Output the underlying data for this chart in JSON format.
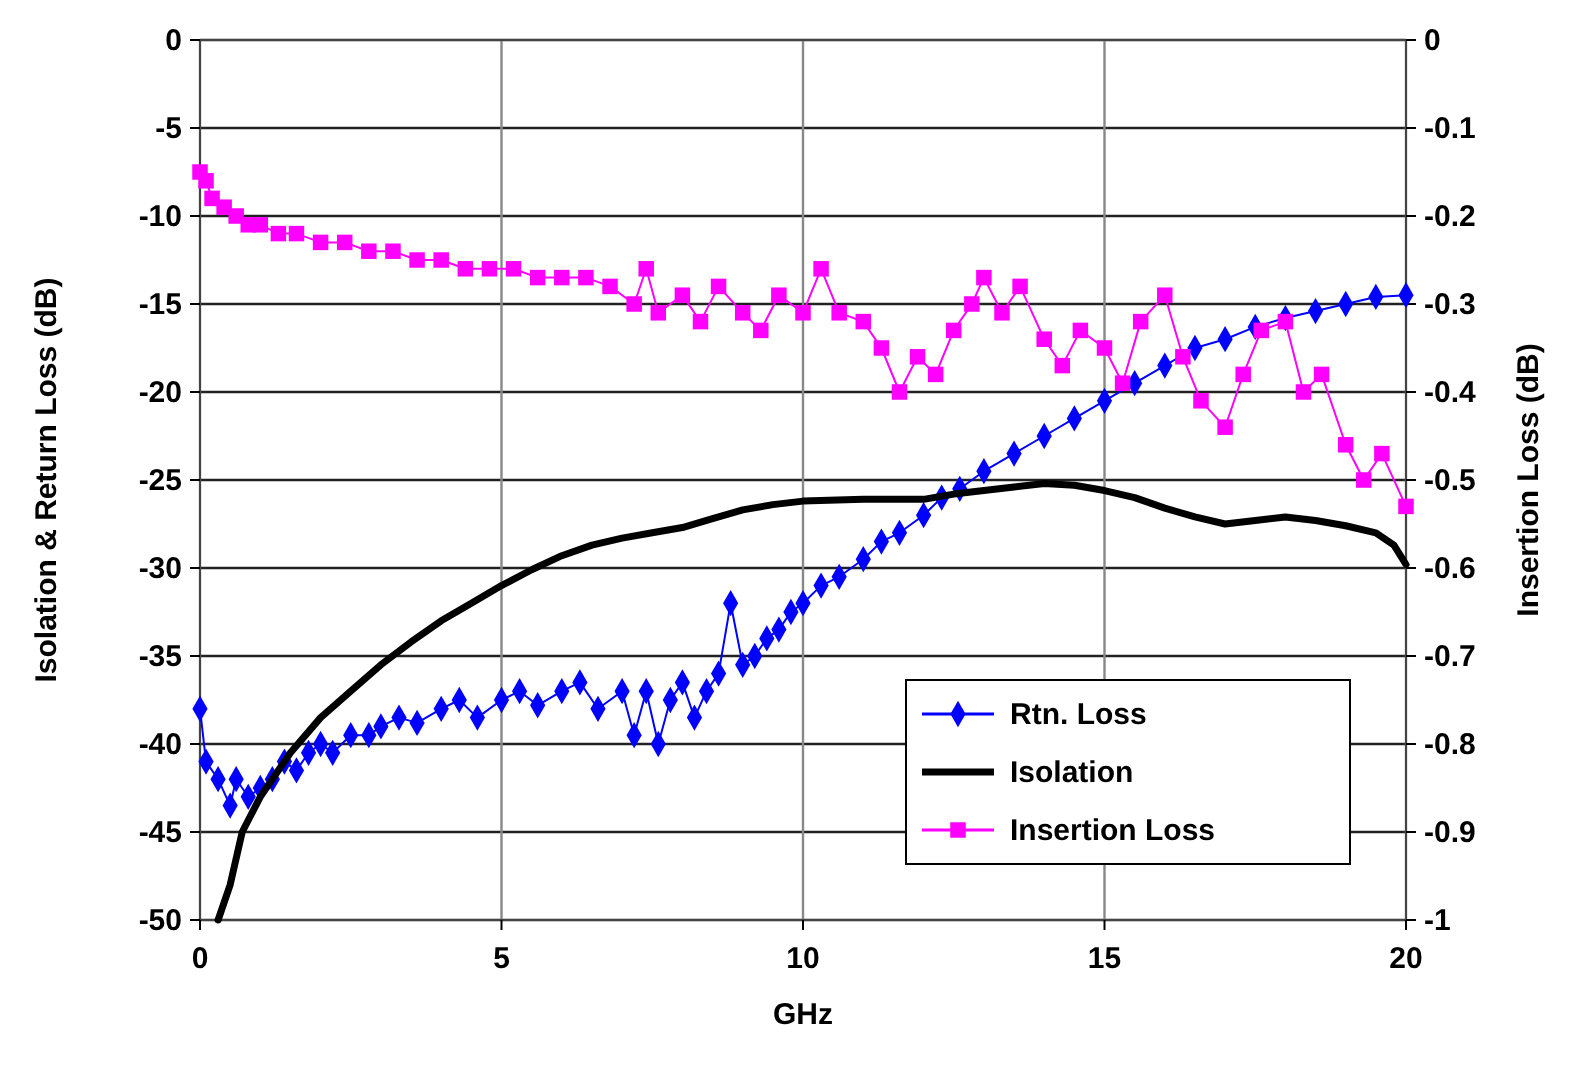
{
  "chart_data": {
    "type": "line",
    "xlabel": "GHz",
    "ylabel": "Isolation & Return Loss (dB)",
    "y2label": "Insertion Loss (dB)",
    "xlim": [
      0,
      20
    ],
    "xticks": [
      0,
      5,
      10,
      15,
      20
    ],
    "ylim": [
      -50,
      0
    ],
    "yticks": [
      -50,
      -45,
      -40,
      -35,
      -30,
      -25,
      -20,
      -15,
      -10,
      -5,
      0
    ],
    "y2lim": [
      -1,
      0
    ],
    "y2ticks": [
      -1,
      -0.9,
      -0.8,
      -0.7,
      -0.6,
      -0.5,
      -0.4,
      -0.3,
      -0.2,
      -0.1,
      0
    ],
    "grid": true,
    "legend": "bottom right",
    "series": [
      {
        "name": "Rtn. Loss",
        "color": "#0000ff",
        "marker": "diamond",
        "x": [
          0,
          0.1,
          0.3,
          0.5,
          0.6,
          0.8,
          1,
          1.2,
          1.4,
          1.6,
          1.8,
          2,
          2.2,
          2.5,
          2.8,
          3,
          3.3,
          3.6,
          4,
          4.3,
          4.6,
          5,
          5.3,
          5.6,
          6,
          6.3,
          6.6,
          7,
          7.2,
          7.4,
          7.6,
          7.8,
          8,
          8.2,
          8.4,
          8.6,
          8.8,
          9,
          9.2,
          9.4,
          9.6,
          9.8,
          10,
          10.3,
          10.6,
          11,
          11.3,
          11.6,
          12,
          12.3,
          12.6,
          13,
          13.5,
          14,
          14.5,
          15,
          15.5,
          16,
          16.5,
          17,
          17.5,
          18,
          18.5,
          19,
          19.5,
          20
        ],
        "values": [
          -38,
          -41,
          -42,
          -43.5,
          -42,
          -43,
          -42.5,
          -42,
          -41,
          -41.5,
          -40.5,
          -40,
          -40.5,
          -39.5,
          -39.5,
          -39,
          -38.5,
          -38.8,
          -38,
          -37.5,
          -38.5,
          -37.5,
          -37,
          -37.8,
          -37,
          -36.5,
          -38,
          -37,
          -39.5,
          -37,
          -40,
          -37.5,
          -36.5,
          -38.5,
          -37,
          -36,
          -32,
          -35.5,
          -35,
          -34,
          -33.5,
          -32.5,
          -32,
          -31,
          -30.5,
          -29.5,
          -28.5,
          -28,
          -27,
          -26,
          -25.5,
          -24.5,
          -23.5,
          -22.5,
          -21.5,
          -20.5,
          -19.5,
          -18.5,
          -17.5,
          -17,
          -16.3,
          -15.8,
          -15.4,
          -15,
          -14.6,
          -14.5
        ]
      },
      {
        "name": "Isolation",
        "color": "#000000",
        "marker": "none",
        "x": [
          0.3,
          0.5,
          0.7,
          1,
          1.5,
          2,
          2.5,
          3,
          3.5,
          4,
          4.5,
          5,
          5.5,
          6,
          6.5,
          7,
          7.5,
          8,
          8.5,
          9,
          9.5,
          10,
          11,
          12,
          12.5,
          13,
          13.5,
          14,
          14.5,
          15,
          15.5,
          16,
          16.5,
          17,
          17.5,
          18,
          18.5,
          19,
          19.5,
          19.8,
          20
        ],
        "values": [
          -50,
          -48,
          -45,
          -43,
          -40.5,
          -38.5,
          -37,
          -35.5,
          -34.2,
          -33,
          -32,
          -31,
          -30.1,
          -29.3,
          -28.7,
          -28.3,
          -28,
          -27.7,
          -27.2,
          -26.7,
          -26.4,
          -26.2,
          -26.1,
          -26.1,
          -25.8,
          -25.6,
          -25.4,
          -25.2,
          -25.3,
          -25.6,
          -26,
          -26.6,
          -27.1,
          -27.5,
          -27.3,
          -27.1,
          -27.3,
          -27.6,
          -28,
          -28.7,
          -29.8
        ]
      },
      {
        "name": "Insertion Loss",
        "color": "#ff00ff",
        "marker": "square",
        "axis": "y2",
        "x": [
          0,
          0.1,
          0.2,
          0.4,
          0.6,
          0.8,
          1,
          1.3,
          1.6,
          2,
          2.4,
          2.8,
          3.2,
          3.6,
          4,
          4.4,
          4.8,
          5.2,
          5.6,
          6,
          6.4,
          6.8,
          7.2,
          7.4,
          7.6,
          8,
          8.3,
          8.6,
          9,
          9.3,
          9.6,
          10,
          10.3,
          10.6,
          11,
          11.3,
          11.6,
          11.9,
          12.2,
          12.5,
          12.8,
          13,
          13.3,
          13.6,
          14,
          14.3,
          14.6,
          15,
          15.3,
          15.6,
          16,
          16.3,
          16.6,
          17,
          17.3,
          17.6,
          18,
          18.3,
          18.6,
          19,
          19.3,
          19.6,
          20
        ],
        "values": [
          -0.15,
          -0.16,
          -0.18,
          -0.19,
          -0.2,
          -0.21,
          -0.21,
          -0.22,
          -0.22,
          -0.23,
          -0.23,
          -0.24,
          -0.24,
          -0.25,
          -0.25,
          -0.26,
          -0.26,
          -0.26,
          -0.27,
          -0.27,
          -0.27,
          -0.28,
          -0.3,
          -0.26,
          -0.31,
          -0.29,
          -0.32,
          -0.28,
          -0.31,
          -0.33,
          -0.29,
          -0.31,
          -0.26,
          -0.31,
          -0.32,
          -0.35,
          -0.4,
          -0.36,
          -0.38,
          -0.33,
          -0.3,
          -0.27,
          -0.31,
          -0.28,
          -0.34,
          -0.37,
          -0.33,
          -0.35,
          -0.39,
          -0.32,
          -0.29,
          -0.36,
          -0.41,
          -0.44,
          -0.38,
          -0.33,
          -0.32,
          -0.4,
          -0.38,
          -0.46,
          -0.5,
          -0.47,
          -0.53
        ]
      }
    ]
  }
}
